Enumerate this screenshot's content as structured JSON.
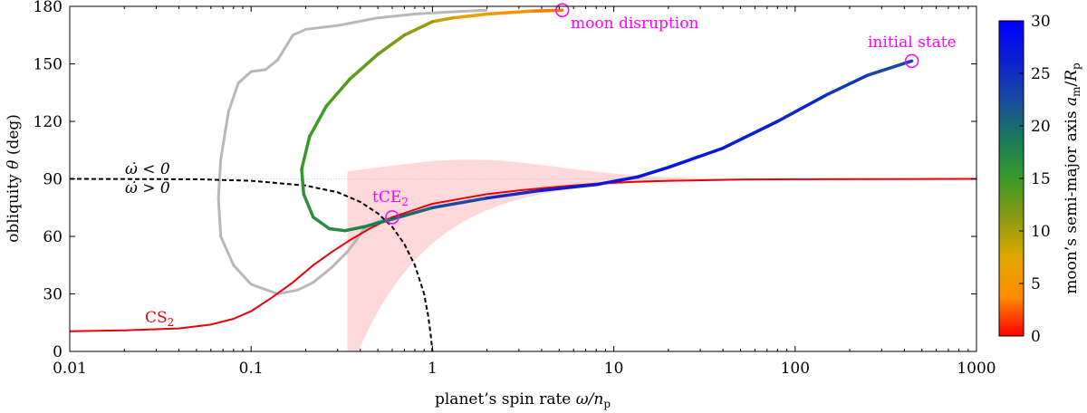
{
  "chart_data": {
    "type": "line",
    "xscale": "log",
    "xlim": [
      0.01,
      1000
    ],
    "ylim": [
      0,
      180
    ],
    "xticks": [
      0.01,
      0.1,
      1,
      10,
      100,
      1000
    ],
    "xtick_labels": [
      "0.01",
      "0.1",
      "1",
      "10",
      "100",
      "1000"
    ],
    "yticks": [
      0,
      30,
      60,
      90,
      120,
      150,
      180
    ],
    "ytick_labels": [
      "0",
      "30",
      "60",
      "90",
      "120",
      "150",
      "180"
    ],
    "xlabel": "planet’s spin rate ω/np",
    "ylabel": "obliquity θ (deg)",
    "grid": false,
    "colorbar": {
      "label": "moon’s semi-major axis am/Rp",
      "range": [
        0,
        30
      ],
      "ticks": [
        0,
        5,
        10,
        15,
        20,
        25,
        30
      ],
      "tick_labels": [
        "0",
        "5",
        "10",
        "15",
        "20",
        "25",
        "30"
      ],
      "colormap": [
        "#ff0000",
        "#ff8c00",
        "#e0a800",
        "#8a9a10",
        "#3a9a2a",
        "#1a7a5a",
        "#1a4aa0",
        "#0a20d0",
        "#0000ff"
      ]
    },
    "colors": {
      "cassini_state": "#e8000b",
      "shaded_region": "#ffd9d9",
      "gray_track": "#b8b8b8",
      "dashed_boundary": "#000000",
      "annotation": "#ff00ff"
    },
    "series": [
      {
        "name": "CS2",
        "kind": "cassini-state-2",
        "points": [
          [
            0.01,
            10.5
          ],
          [
            0.02,
            11
          ],
          [
            0.04,
            12
          ],
          [
            0.06,
            14
          ],
          [
            0.08,
            17
          ],
          [
            0.1,
            21
          ],
          [
            0.13,
            28
          ],
          [
            0.17,
            36
          ],
          [
            0.22,
            45
          ],
          [
            0.28,
            52
          ],
          [
            0.35,
            58
          ],
          [
            0.45,
            64
          ],
          [
            0.6,
            70
          ],
          [
            0.8,
            74
          ],
          [
            1,
            77
          ],
          [
            1.5,
            80
          ],
          [
            2,
            82
          ],
          [
            3,
            84
          ],
          [
            5,
            86
          ],
          [
            8,
            87.5
          ],
          [
            13,
            88.5
          ],
          [
            20,
            89
          ],
          [
            50,
            89.6
          ],
          [
            100,
            89.8
          ],
          [
            1000,
            90
          ]
        ]
      },
      {
        "name": "",
        "kind": "dashed-boundary",
        "points": [
          [
            0.01,
            90
          ],
          [
            0.05,
            89.8
          ],
          [
            0.1,
            89
          ],
          [
            0.2,
            86.5
          ],
          [
            0.3,
            83
          ],
          [
            0.4,
            78
          ],
          [
            0.5,
            72
          ],
          [
            0.6,
            65
          ],
          [
            0.7,
            56
          ],
          [
            0.8,
            45
          ],
          [
            0.9,
            30
          ],
          [
            0.95,
            18
          ],
          [
            0.98,
            8
          ],
          [
            1.0,
            0
          ]
        ]
      },
      {
        "name": "",
        "kind": "gray-track",
        "points": [
          [
            0.62,
            70
          ],
          [
            0.55,
            69
          ],
          [
            0.48,
            67
          ],
          [
            0.42,
            64
          ],
          [
            0.38,
            58
          ],
          [
            0.34,
            52
          ],
          [
            0.28,
            44
          ],
          [
            0.22,
            36
          ],
          [
            0.18,
            32
          ],
          [
            0.14,
            30
          ],
          [
            0.1,
            35
          ],
          [
            0.08,
            45
          ],
          [
            0.068,
            60
          ],
          [
            0.066,
            80
          ],
          [
            0.068,
            100
          ],
          [
            0.075,
            125
          ],
          [
            0.085,
            140
          ],
          [
            0.1,
            146
          ],
          [
            0.12,
            147
          ],
          [
            0.14,
            152
          ],
          [
            0.17,
            165
          ],
          [
            0.2,
            168
          ],
          [
            0.3,
            170
          ],
          [
            0.5,
            174
          ],
          [
            0.8,
            176
          ],
          [
            1.2,
            177
          ],
          [
            2,
            178
          ]
        ]
      },
      {
        "name": "",
        "kind": "moon-track-early",
        "points": [
          [
            5.2,
            178
          ],
          [
            3.5,
            177.5
          ],
          [
            2,
            176
          ],
          [
            1.3,
            174
          ],
          [
            1,
            172
          ],
          [
            0.7,
            165
          ],
          [
            0.5,
            155
          ],
          [
            0.35,
            142
          ],
          [
            0.26,
            128
          ],
          [
            0.21,
            112
          ],
          [
            0.19,
            95
          ],
          [
            0.195,
            82
          ],
          [
            0.22,
            70
          ],
          [
            0.27,
            64
          ],
          [
            0.33,
            63
          ],
          [
            0.42,
            65
          ],
          [
            0.5,
            67
          ],
          [
            0.6,
            69
          ]
        ],
        "am": [
          3,
          3.5,
          5,
          8,
          10,
          11.5,
          12.5,
          13.5,
          14.5,
          15,
          15.5,
          16,
          16.5,
          17,
          17.5,
          18,
          18.5,
          19
        ]
      },
      {
        "name": "",
        "kind": "moon-track-late",
        "points": [
          [
            0.6,
            69
          ],
          [
            1,
            75
          ],
          [
            2,
            80
          ],
          [
            4,
            84
          ],
          [
            8,
            87
          ],
          [
            13.5,
            91
          ],
          [
            20,
            96
          ],
          [
            40,
            106
          ],
          [
            80,
            120
          ],
          [
            150,
            134
          ],
          [
            250,
            144
          ],
          [
            440,
            151.5
          ]
        ],
        "am": [
          19,
          21,
          24,
          26,
          27,
          27.5,
          27.5,
          27,
          26.5,
          25,
          23.5,
          22
        ]
      }
    ],
    "annotations": [
      {
        "text": "moon disruption",
        "x": 5.2,
        "y": 178
      },
      {
        "text": "initial state",
        "x": 440,
        "y": 151.5
      },
      {
        "text": "tCE2",
        "x": 0.6,
        "y": 70
      },
      {
        "text": "ω̇ < 0",
        "x": 0.045,
        "y": 90
      },
      {
        "text": "ω̇ > 0",
        "x": 0.045,
        "y": 90
      },
      {
        "text": "CS2",
        "x": 0.1,
        "y": 10
      }
    ]
  }
}
